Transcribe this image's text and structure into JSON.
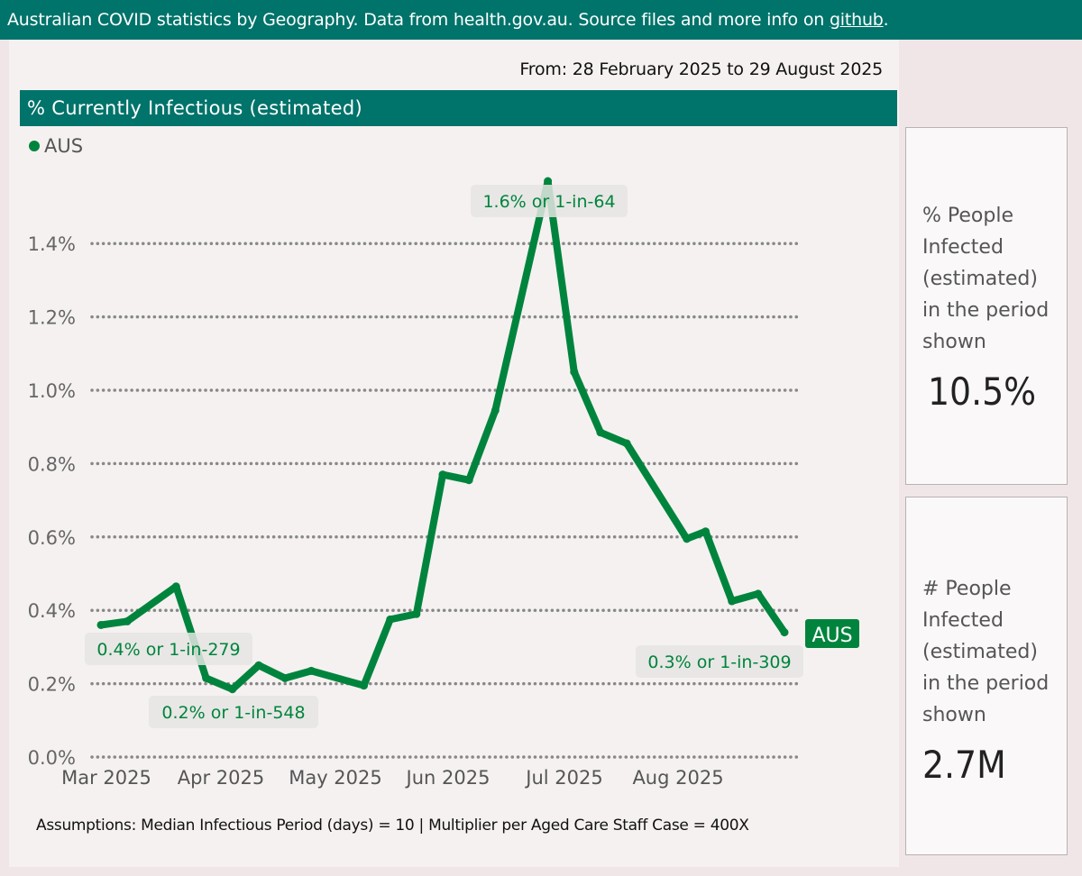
{
  "header": {
    "text_before_link": "Australian COVID statistics by Geography. Data from health.gov.au. Source files and more info on ",
    "link_label": "github",
    "text_after_link": "."
  },
  "date_range": "From: 28 February 2025 to 29 August 2025",
  "chart_title": "% Currently Infectious (estimated)",
  "legend": {
    "series_label": "AUS",
    "series_color": "#00843d"
  },
  "assumptions": "Assumptions: Median Infectious Period (days) = 10 | Multiplier per Aged Care Staff Case = 400X",
  "cards": [
    {
      "label_lines": [
        "% People",
        "Infected",
        "(estimated)",
        "in the period",
        "shown"
      ],
      "value": "10.5%"
    },
    {
      "label_lines": [
        "# People",
        "Infected",
        "(estimated)",
        "in the period",
        "shown"
      ],
      "value": "2.7M"
    }
  ],
  "colors": {
    "brand": "#00736a",
    "line": "#00843d",
    "background": "#f0e6e8",
    "panel": "#f5f1f1"
  },
  "chart_data": {
    "type": "line",
    "title": "% Currently Infectious (estimated)",
    "xlabel": "",
    "ylabel": "",
    "ylim": [
      0,
      1.6
    ],
    "yticks": [
      0,
      0.2,
      0.4,
      0.6,
      0.8,
      1.0,
      1.2,
      1.4
    ],
    "ytick_labels": [
      "0.0%",
      "0.2%",
      "0.4%",
      "0.6%",
      "0.8%",
      "1.0%",
      "1.2%",
      "1.4%"
    ],
    "xlim": [
      "2025-02-28",
      "2025-08-29"
    ],
    "xtick_labels": [
      "Mar 2025",
      "Apr 2025",
      "May 2025",
      "Jun 2025",
      "Jul 2025",
      "Aug 2025"
    ],
    "xtick_dates": [
      "2025-03-01",
      "2025-04-01",
      "2025-05-01",
      "2025-06-01",
      "2025-07-01",
      "2025-08-01"
    ],
    "grid": "horizontal-dotted",
    "legend_position": "top-left",
    "series": [
      {
        "name": "AUS",
        "end_label": "AUS",
        "points": [
          [
            "2025-02-28",
            0.36
          ],
          [
            "2025-03-07",
            0.37
          ],
          [
            "2025-03-20",
            0.465
          ],
          [
            "2025-03-28",
            0.215
          ],
          [
            "2025-04-04",
            0.185
          ],
          [
            "2025-04-11",
            0.25
          ],
          [
            "2025-04-18",
            0.215
          ],
          [
            "2025-04-25",
            0.235
          ],
          [
            "2025-05-09",
            0.195
          ],
          [
            "2025-05-16",
            0.375
          ],
          [
            "2025-05-23",
            0.39
          ],
          [
            "2025-05-30",
            0.77
          ],
          [
            "2025-06-06",
            0.755
          ],
          [
            "2025-06-13",
            0.945
          ],
          [
            "2025-06-27",
            1.57
          ],
          [
            "2025-07-04",
            1.05
          ],
          [
            "2025-07-11",
            0.885
          ],
          [
            "2025-07-18",
            0.855
          ],
          [
            "2025-08-03",
            0.595
          ],
          [
            "2025-08-08",
            0.615
          ],
          [
            "2025-08-15",
            0.425
          ],
          [
            "2025-08-22",
            0.445
          ],
          [
            "2025-08-29",
            0.34
          ]
        ]
      }
    ],
    "annotations": [
      {
        "text": "0.4% or 1-in-279",
        "date": "2025-02-28",
        "value": 0.36,
        "role": "start"
      },
      {
        "text": "0.2% or 1-in-548",
        "date": "2025-04-04",
        "value": 0.185,
        "role": "min"
      },
      {
        "text": "1.6% or 1-in-64",
        "date": "2025-06-27",
        "value": 1.57,
        "role": "max"
      },
      {
        "text": "0.3% or 1-in-309",
        "date": "2025-08-29",
        "value": 0.34,
        "role": "end"
      }
    ]
  }
}
